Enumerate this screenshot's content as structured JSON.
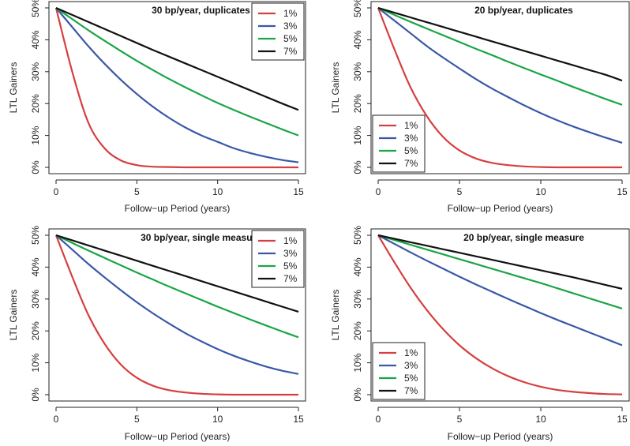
{
  "chart_data": [
    {
      "type": "line",
      "title": "30 bp/year, duplicates",
      "xlabel": "Follow−up Period (years)",
      "ylabel": "LTL Gainers",
      "xlim": [
        0,
        15
      ],
      "ylim": [
        0,
        50
      ],
      "x_ticks": [
        "0",
        "5",
        "10",
        "15"
      ],
      "y_ticks": [
        "0%",
        "10%",
        "20%",
        "30%",
        "40%",
        "50%"
      ],
      "legend_position": "top-right",
      "x": [
        0,
        1,
        2,
        3,
        4,
        5,
        6,
        7,
        8,
        9,
        10,
        11,
        12,
        13,
        14,
        15
      ],
      "series": [
        {
          "name": "1%",
          "color": "#d63f3f",
          "values": [
            50,
            30,
            14,
            6,
            2.2,
            0.7,
            0.2,
            0.1,
            0,
            0,
            0,
            0,
            0,
            0,
            0,
            0
          ]
        },
        {
          "name": "3%",
          "color": "#3a58a8",
          "values": [
            50,
            44,
            38,
            32.5,
            27.5,
            23,
            19,
            15.5,
            12.5,
            10,
            8,
            6,
            4.5,
            3.3,
            2.3,
            1.6
          ]
        },
        {
          "name": "5%",
          "color": "#1aa546",
          "values": [
            50,
            46.5,
            43,
            39.7,
            36.5,
            33.4,
            30.5,
            27.7,
            25.1,
            22.6,
            20.2,
            18,
            15.9,
            13.9,
            11.9,
            10
          ]
        },
        {
          "name": "7%",
          "color": "#111111",
          "values": [
            50,
            47.8,
            45.6,
            43.4,
            41.2,
            39,
            36.8,
            34.7,
            32.6,
            30.5,
            28.4,
            26.3,
            24.2,
            22.1,
            20,
            18
          ]
        }
      ]
    },
    {
      "type": "line",
      "title": "20 bp/year, duplicates",
      "xlabel": "Follow−up Period (years)",
      "ylabel": "LTL Gainers",
      "xlim": [
        0,
        15
      ],
      "ylim": [
        0,
        50
      ],
      "x_ticks": [
        "0",
        "5",
        "10",
        "15"
      ],
      "y_ticks": [
        "0%",
        "10%",
        "20%",
        "30%",
        "40%",
        "50%"
      ],
      "legend_position": "bottom-left",
      "x": [
        0,
        1,
        2,
        3,
        4,
        5,
        6,
        7,
        8,
        9,
        10,
        11,
        12,
        13,
        14,
        15
      ],
      "series": [
        {
          "name": "1%",
          "color": "#d63f3f",
          "values": [
            50,
            37,
            25,
            16,
            9.5,
            5.3,
            2.8,
            1.4,
            0.7,
            0.3,
            0.1,
            0,
            0,
            0,
            0,
            0
          ]
        },
        {
          "name": "3%",
          "color": "#3a58a8",
          "values": [
            50,
            46,
            42,
            38,
            34.4,
            31,
            27.7,
            24.7,
            22,
            19.4,
            17,
            14.8,
            12.8,
            11,
            9.3,
            7.7
          ]
        },
        {
          "name": "5%",
          "color": "#1aa546",
          "values": [
            50,
            47.8,
            45.6,
            43.5,
            41.4,
            39.3,
            37.2,
            35.2,
            33.1,
            31.1,
            29.1,
            27.2,
            25.2,
            23.3,
            21.4,
            19.6
          ]
        },
        {
          "name": "7%",
          "color": "#111111",
          "values": [
            50,
            48.5,
            47,
            45.5,
            44,
            42.5,
            41,
            39.5,
            38,
            36.5,
            35,
            33.5,
            32,
            30.5,
            29,
            27.2
          ]
        }
      ]
    },
    {
      "type": "line",
      "title": "30 bp/year, single measure",
      "xlabel": "Follow−up Period (years)",
      "ylabel": "LTL Gainers",
      "xlim": [
        0,
        15
      ],
      "ylim": [
        0,
        50
      ],
      "x_ticks": [
        "0",
        "5",
        "10",
        "15"
      ],
      "y_ticks": [
        "0%",
        "10%",
        "20%",
        "30%",
        "40%",
        "50%"
      ],
      "legend_position": "top-right",
      "x": [
        0,
        1,
        2,
        3,
        4,
        5,
        6,
        7,
        8,
        9,
        10,
        11,
        12,
        13,
        14,
        15
      ],
      "series": [
        {
          "name": "1%",
          "color": "#d63f3f",
          "values": [
            50,
            37,
            25,
            16,
            9.5,
            5.3,
            2.8,
            1.4,
            0.7,
            0.3,
            0.1,
            0,
            0,
            0,
            0,
            0
          ]
        },
        {
          "name": "3%",
          "color": "#3a58a8",
          "values": [
            50,
            45.5,
            41,
            36.8,
            32.8,
            29,
            25.5,
            22.3,
            19.3,
            16.7,
            14.3,
            12.2,
            10.4,
            8.8,
            7.5,
            6.5
          ]
        },
        {
          "name": "5%",
          "color": "#1aa546",
          "values": [
            50,
            47.6,
            45.2,
            42.9,
            40.6,
            38.3,
            36.1,
            33.9,
            31.8,
            29.7,
            27.6,
            25.6,
            23.6,
            21.7,
            19.8,
            18
          ]
        },
        {
          "name": "7%",
          "color": "#111111",
          "values": [
            50,
            48.4,
            46.8,
            45.2,
            43.6,
            42,
            40.4,
            38.8,
            37.2,
            35.6,
            34,
            32.4,
            30.8,
            29.2,
            27.6,
            26
          ]
        }
      ]
    },
    {
      "type": "line",
      "title": "20 bp/year, single measure",
      "xlabel": "Follow−up Period (years)",
      "ylabel": "LTL Gainers",
      "xlim": [
        0,
        15
      ],
      "ylim": [
        0,
        50
      ],
      "x_ticks": [
        "0",
        "5",
        "10",
        "15"
      ],
      "y_ticks": [
        "0%",
        "10%",
        "20%",
        "30%",
        "40%",
        "50%"
      ],
      "legend_position": "bottom-left",
      "x": [
        0,
        1,
        2,
        3,
        4,
        5,
        6,
        7,
        8,
        9,
        10,
        11,
        12,
        13,
        14,
        15
      ],
      "series": [
        {
          "name": "1%",
          "color": "#d63f3f",
          "values": [
            50,
            41.5,
            33.5,
            26.5,
            20.5,
            15.5,
            11.5,
            8.3,
            5.8,
            3.9,
            2.5,
            1.5,
            0.9,
            0.5,
            0.2,
            0.1
          ]
        },
        {
          "name": "3%",
          "color": "#3a58a8",
          "values": [
            50,
            47.3,
            44.6,
            42,
            39.5,
            37,
            34.6,
            32.3,
            30,
            27.8,
            25.6,
            23.5,
            21.5,
            19.5,
            17.5,
            15.5
          ]
        },
        {
          "name": "5%",
          "color": "#1aa546",
          "values": [
            50,
            48.5,
            47,
            45.5,
            44,
            42.5,
            41,
            39.5,
            38,
            36.5,
            35,
            33.4,
            31.8,
            30.2,
            28.6,
            27
          ]
        },
        {
          "name": "7%",
          "color": "#111111",
          "values": [
            50,
            48.9,
            47.8,
            46.7,
            45.6,
            44.5,
            43.4,
            42.3,
            41.2,
            40.1,
            39,
            37.9,
            36.8,
            35.6,
            34.4,
            33.2
          ]
        }
      ]
    }
  ]
}
